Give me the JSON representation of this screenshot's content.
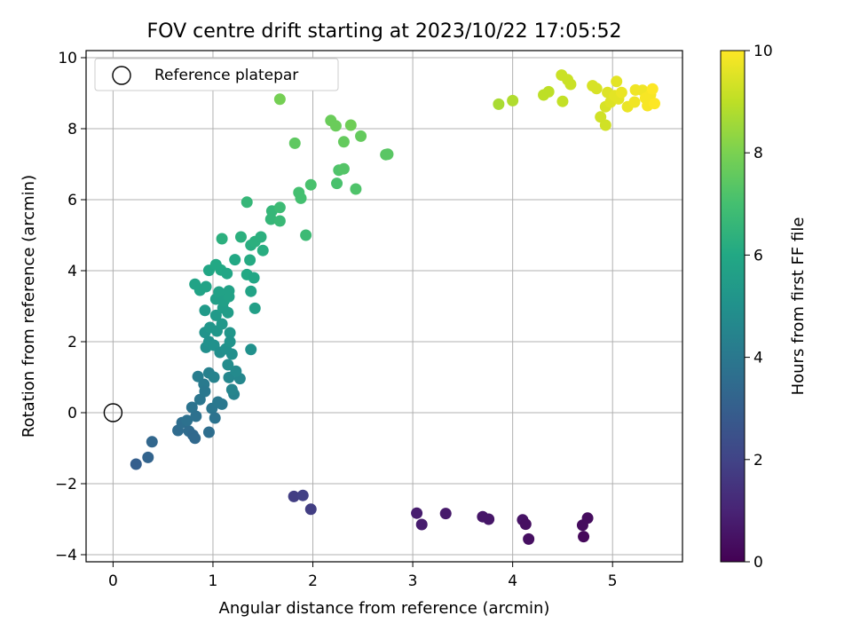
{
  "chart_data": {
    "type": "scatter",
    "title": "FOV centre drift starting at 2023/10/22 17:05:52",
    "xlabel": "Angular distance from reference (arcmin)",
    "ylabel": "Rotation from reference (arcmin)",
    "xlim": [
      -0.27,
      5.7
    ],
    "ylim": [
      -4.2,
      10.2
    ],
    "xticks": [
      0,
      1,
      2,
      3,
      4,
      5
    ],
    "yticks": [
      -4,
      -2,
      0,
      2,
      4,
      6,
      8,
      10
    ],
    "grid": true,
    "legend": {
      "placement": "top-left",
      "entries": [
        "Reference platepar"
      ]
    },
    "reference_point": {
      "x": 0,
      "y": 0,
      "label": "Reference platepar"
    },
    "colorbar": {
      "label": "Hours from first FF file",
      "colormap": "viridis",
      "range": [
        0,
        10
      ],
      "ticks": [
        0,
        2,
        4,
        6,
        8,
        10
      ]
    },
    "points": [
      {
        "x": 1.81,
        "y": -2.36,
        "c": 1.8
      },
      {
        "x": 1.9,
        "y": -2.33,
        "c": 1.9
      },
      {
        "x": 1.98,
        "y": -2.72,
        "c": 1.8
      },
      {
        "x": 3.04,
        "y": -2.83,
        "c": 0.8
      },
      {
        "x": 3.09,
        "y": -3.15,
        "c": 0.8
      },
      {
        "x": 3.33,
        "y": -2.84,
        "c": 0.7
      },
      {
        "x": 3.7,
        "y": -2.93,
        "c": 0.6
      },
      {
        "x": 3.76,
        "y": -3.0,
        "c": 0.6
      },
      {
        "x": 4.1,
        "y": -3.02,
        "c": 0.5
      },
      {
        "x": 4.13,
        "y": -3.14,
        "c": 0.4
      },
      {
        "x": 4.16,
        "y": -3.56,
        "c": 0.4
      },
      {
        "x": 4.7,
        "y": -3.17,
        "c": 0.3
      },
      {
        "x": 4.71,
        "y": -3.49,
        "c": 0.2
      },
      {
        "x": 4.75,
        "y": -2.97,
        "c": 0.3
      },
      {
        "x": 0.23,
        "y": -1.45,
        "c": 3.0
      },
      {
        "x": 0.35,
        "y": -1.26,
        "c": 3.2
      },
      {
        "x": 0.39,
        "y": -0.82,
        "c": 3.3
      },
      {
        "x": 0.65,
        "y": -0.5,
        "c": 3.5
      },
      {
        "x": 0.69,
        "y": -0.28,
        "c": 3.6
      },
      {
        "x": 0.76,
        "y": -0.52,
        "c": 3.5
      },
      {
        "x": 0.8,
        "y": -0.63,
        "c": 3.4
      },
      {
        "x": 0.82,
        "y": -0.72,
        "c": 3.4
      },
      {
        "x": 0.74,
        "y": -0.22,
        "c": 3.7
      },
      {
        "x": 0.79,
        "y": 0.15,
        "c": 3.8
      },
      {
        "x": 0.83,
        "y": -0.1,
        "c": 3.7
      },
      {
        "x": 0.87,
        "y": 0.37,
        "c": 3.9
      },
      {
        "x": 0.85,
        "y": 1.02,
        "c": 4.2
      },
      {
        "x": 0.91,
        "y": 0.8,
        "c": 4.1
      },
      {
        "x": 0.92,
        "y": 0.6,
        "c": 4.0
      },
      {
        "x": 0.96,
        "y": -0.55,
        "c": 3.6
      },
      {
        "x": 0.96,
        "y": 1.12,
        "c": 4.3
      },
      {
        "x": 0.99,
        "y": 0.12,
        "c": 3.9
      },
      {
        "x": 1.02,
        "y": -0.15,
        "c": 3.8
      },
      {
        "x": 1.05,
        "y": 0.3,
        "c": 4.0
      },
      {
        "x": 1.09,
        "y": 0.24,
        "c": 4.0
      },
      {
        "x": 1.01,
        "y": 1.0,
        "c": 4.4
      },
      {
        "x": 1.16,
        "y": 0.99,
        "c": 4.6
      },
      {
        "x": 1.21,
        "y": 0.52,
        "c": 4.4
      },
      {
        "x": 1.19,
        "y": 0.65,
        "c": 4.5
      },
      {
        "x": 1.27,
        "y": 0.96,
        "c": 4.6
      },
      {
        "x": 1.23,
        "y": 1.17,
        "c": 4.7
      },
      {
        "x": 1.15,
        "y": 1.35,
        "c": 4.8
      },
      {
        "x": 1.38,
        "y": 1.78,
        "c": 5.0
      },
      {
        "x": 1.19,
        "y": 1.65,
        "c": 4.9
      },
      {
        "x": 0.93,
        "y": 1.84,
        "c": 4.9
      },
      {
        "x": 0.96,
        "y": 2.0,
        "c": 5.0
      },
      {
        "x": 1.01,
        "y": 1.9,
        "c": 5.0
      },
      {
        "x": 1.07,
        "y": 1.7,
        "c": 4.9
      },
      {
        "x": 1.13,
        "y": 1.8,
        "c": 5.0
      },
      {
        "x": 0.92,
        "y": 2.26,
        "c": 5.1
      },
      {
        "x": 0.97,
        "y": 2.4,
        "c": 5.2
      },
      {
        "x": 1.04,
        "y": 2.3,
        "c": 5.2
      },
      {
        "x": 1.09,
        "y": 2.5,
        "c": 5.3
      },
      {
        "x": 1.17,
        "y": 2.25,
        "c": 5.2
      },
      {
        "x": 1.17,
        "y": 2.0,
        "c": 5.1
      },
      {
        "x": 0.92,
        "y": 2.88,
        "c": 5.4
      },
      {
        "x": 1.03,
        "y": 2.74,
        "c": 5.4
      },
      {
        "x": 1.1,
        "y": 2.95,
        "c": 5.5
      },
      {
        "x": 1.15,
        "y": 2.82,
        "c": 5.5
      },
      {
        "x": 1.03,
        "y": 3.2,
        "c": 5.6
      },
      {
        "x": 1.06,
        "y": 3.4,
        "c": 5.7
      },
      {
        "x": 1.11,
        "y": 3.15,
        "c": 5.6
      },
      {
        "x": 1.16,
        "y": 3.27,
        "c": 5.7
      },
      {
        "x": 1.16,
        "y": 3.43,
        "c": 5.7
      },
      {
        "x": 0.82,
        "y": 3.62,
        "c": 5.8
      },
      {
        "x": 0.87,
        "y": 3.45,
        "c": 5.8
      },
      {
        "x": 0.93,
        "y": 3.55,
        "c": 5.8
      },
      {
        "x": 0.96,
        "y": 4.01,
        "c": 5.9
      },
      {
        "x": 1.03,
        "y": 4.17,
        "c": 6.0
      },
      {
        "x": 1.08,
        "y": 4.02,
        "c": 6.0
      },
      {
        "x": 1.14,
        "y": 3.92,
        "c": 5.9
      },
      {
        "x": 1.22,
        "y": 4.31,
        "c": 6.0
      },
      {
        "x": 1.34,
        "y": 3.89,
        "c": 6.0
      },
      {
        "x": 1.38,
        "y": 3.42,
        "c": 5.8
      },
      {
        "x": 1.41,
        "y": 3.8,
        "c": 5.9
      },
      {
        "x": 1.42,
        "y": 2.94,
        "c": 5.6
      },
      {
        "x": 1.37,
        "y": 4.3,
        "c": 6.1
      },
      {
        "x": 1.38,
        "y": 4.72,
        "c": 6.2
      },
      {
        "x": 1.42,
        "y": 4.82,
        "c": 6.3
      },
      {
        "x": 1.5,
        "y": 4.57,
        "c": 6.2
      },
      {
        "x": 1.48,
        "y": 4.95,
        "c": 6.3
      },
      {
        "x": 1.28,
        "y": 4.95,
        "c": 6.3
      },
      {
        "x": 1.09,
        "y": 4.9,
        "c": 6.3
      },
      {
        "x": 1.34,
        "y": 5.93,
        "c": 6.6
      },
      {
        "x": 1.58,
        "y": 5.45,
        "c": 6.6
      },
      {
        "x": 1.59,
        "y": 5.68,
        "c": 6.6
      },
      {
        "x": 1.67,
        "y": 5.4,
        "c": 6.7
      },
      {
        "x": 1.67,
        "y": 5.78,
        "c": 6.8
      },
      {
        "x": 1.93,
        "y": 5.0,
        "c": 6.8
      },
      {
        "x": 1.86,
        "y": 6.2,
        "c": 7.0
      },
      {
        "x": 1.88,
        "y": 6.04,
        "c": 7.0
      },
      {
        "x": 1.98,
        "y": 6.42,
        "c": 7.1
      },
      {
        "x": 2.24,
        "y": 6.46,
        "c": 7.1
      },
      {
        "x": 2.43,
        "y": 6.3,
        "c": 7.2
      },
      {
        "x": 2.26,
        "y": 6.83,
        "c": 7.2
      },
      {
        "x": 2.31,
        "y": 6.87,
        "c": 7.3
      },
      {
        "x": 2.73,
        "y": 7.27,
        "c": 7.4
      },
      {
        "x": 2.75,
        "y": 7.28,
        "c": 7.4
      },
      {
        "x": 1.82,
        "y": 7.59,
        "c": 7.5
      },
      {
        "x": 2.31,
        "y": 7.63,
        "c": 7.6
      },
      {
        "x": 2.48,
        "y": 7.79,
        "c": 7.6
      },
      {
        "x": 2.18,
        "y": 8.23,
        "c": 7.7
      },
      {
        "x": 2.23,
        "y": 8.08,
        "c": 7.7
      },
      {
        "x": 2.38,
        "y": 8.1,
        "c": 7.8
      },
      {
        "x": 1.67,
        "y": 8.83,
        "c": 7.9
      },
      {
        "x": 3.86,
        "y": 8.69,
        "c": 8.7
      },
      {
        "x": 4.0,
        "y": 8.79,
        "c": 8.8
      },
      {
        "x": 4.31,
        "y": 8.95,
        "c": 9.0
      },
      {
        "x": 4.36,
        "y": 9.04,
        "c": 9.0
      },
      {
        "x": 4.49,
        "y": 9.51,
        "c": 9.2
      },
      {
        "x": 4.55,
        "y": 9.38,
        "c": 9.2
      },
      {
        "x": 4.58,
        "y": 9.25,
        "c": 9.2
      },
      {
        "x": 4.5,
        "y": 8.77,
        "c": 9.1
      },
      {
        "x": 4.8,
        "y": 9.21,
        "c": 9.4
      },
      {
        "x": 4.84,
        "y": 9.13,
        "c": 9.4
      },
      {
        "x": 4.88,
        "y": 8.33,
        "c": 9.3
      },
      {
        "x": 4.93,
        "y": 8.1,
        "c": 9.3
      },
      {
        "x": 4.93,
        "y": 8.62,
        "c": 9.4
      },
      {
        "x": 4.95,
        "y": 9.02,
        "c": 9.5
      },
      {
        "x": 4.98,
        "y": 8.75,
        "c": 9.5
      },
      {
        "x": 5.02,
        "y": 8.93,
        "c": 9.6
      },
      {
        "x": 5.04,
        "y": 9.33,
        "c": 9.6
      },
      {
        "x": 5.06,
        "y": 8.84,
        "c": 9.6
      },
      {
        "x": 5.09,
        "y": 9.02,
        "c": 9.7
      },
      {
        "x": 5.15,
        "y": 8.62,
        "c": 9.7
      },
      {
        "x": 5.22,
        "y": 8.75,
        "c": 9.8
      },
      {
        "x": 5.23,
        "y": 9.09,
        "c": 9.8
      },
      {
        "x": 5.3,
        "y": 9.08,
        "c": 9.8
      },
      {
        "x": 5.33,
        "y": 8.86,
        "c": 9.9
      },
      {
        "x": 5.35,
        "y": 8.65,
        "c": 9.9
      },
      {
        "x": 5.38,
        "y": 8.96,
        "c": 9.9
      },
      {
        "x": 5.4,
        "y": 9.12,
        "c": 10.0
      },
      {
        "x": 5.42,
        "y": 8.71,
        "c": 10.0
      }
    ]
  }
}
